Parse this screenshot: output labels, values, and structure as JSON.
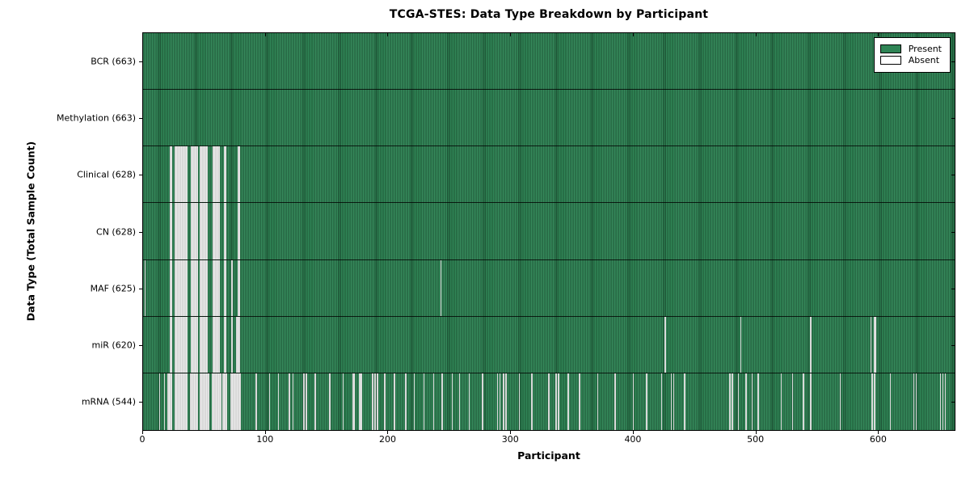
{
  "figure": {
    "title": "TCGA-STES: Data Type Breakdown by Participant"
  },
  "chart_data": {
    "type": "heatmap",
    "title": "TCGA-STES: Data Type Breakdown by Participant",
    "xlabel": "Participant",
    "ylabel": "Data Type (Total Sample Count)",
    "xlim": [
      0,
      663
    ],
    "n_participants": 663,
    "x_ticks": [
      0,
      100,
      200,
      300,
      400,
      500,
      600
    ],
    "grid": false,
    "legend_position": "upper right",
    "legend": {
      "entries": [
        {
          "label": "Present",
          "color": "#2f8455"
        },
        {
          "label": "Absent",
          "color": "#ffffff"
        }
      ]
    },
    "colors": {
      "present": "#2f8455",
      "absent": "#e8e8e8",
      "bar_edge": "#000000"
    },
    "rows": [
      {
        "label": "BCR (663)",
        "name": "BCR",
        "total_present": 663,
        "absent": []
      },
      {
        "label": "Methylation (663)",
        "name": "Methylation",
        "total_present": 663,
        "absent": []
      },
      {
        "label": "Clinical (628)",
        "name": "Clinical",
        "total_present": 628,
        "absent": [
          22,
          23,
          26,
          27,
          28,
          29,
          30,
          31,
          32,
          33,
          34,
          35,
          39,
          40,
          41,
          42,
          43,
          44,
          46,
          47,
          48,
          49,
          50,
          51,
          52,
          57,
          58,
          59,
          60,
          61,
          62,
          66,
          67,
          77,
          78
        ]
      },
      {
        "label": "CN (628)",
        "name": "CN",
        "total_present": 628,
        "absent": [
          22,
          23,
          26,
          27,
          28,
          29,
          30,
          31,
          32,
          33,
          34,
          35,
          39,
          40,
          41,
          42,
          43,
          44,
          46,
          47,
          48,
          49,
          50,
          51,
          52,
          57,
          58,
          59,
          60,
          61,
          62,
          66,
          67,
          77,
          78
        ]
      },
      {
        "label": "MAF (625)",
        "name": "MAF",
        "total_present": 625,
        "absent": [
          1,
          22,
          23,
          26,
          27,
          28,
          29,
          30,
          31,
          32,
          33,
          34,
          35,
          39,
          40,
          41,
          42,
          43,
          44,
          46,
          47,
          48,
          49,
          50,
          51,
          52,
          57,
          58,
          59,
          60,
          61,
          62,
          66,
          67,
          72,
          77,
          78,
          243
        ]
      },
      {
        "label": "miR (620)",
        "name": "miR",
        "total_present": 620,
        "absent": [
          22,
          23,
          26,
          27,
          28,
          29,
          30,
          31,
          32,
          33,
          34,
          35,
          39,
          40,
          41,
          42,
          43,
          44,
          46,
          47,
          48,
          49,
          50,
          51,
          52,
          57,
          58,
          59,
          60,
          61,
          62,
          66,
          67,
          72,
          76,
          77,
          78,
          426,
          488,
          545,
          594,
          597,
          598
        ]
      },
      {
        "label": "mRNA (544)",
        "name": "mRNA",
        "total_present": 544,
        "absent": [
          13,
          17,
          20,
          21,
          22,
          23,
          26,
          27,
          28,
          29,
          30,
          31,
          32,
          33,
          34,
          35,
          38,
          39,
          40,
          41,
          42,
          43,
          44,
          46,
          47,
          48,
          49,
          50,
          51,
          52,
          53,
          56,
          57,
          58,
          59,
          60,
          61,
          62,
          63,
          65,
          66,
          67,
          68,
          71,
          72,
          73,
          74,
          75,
          76,
          77,
          78,
          79,
          92,
          103,
          110,
          119,
          122,
          131,
          133,
          140,
          152,
          163,
          171,
          172,
          176,
          177,
          178,
          187,
          189,
          191,
          197,
          205,
          214,
          221,
          229,
          237,
          244,
          252,
          258,
          266,
          277,
          289,
          291,
          294,
          296,
          307,
          317,
          331,
          337,
          339,
          347,
          356,
          371,
          385,
          400,
          411,
          423,
          431,
          433,
          442,
          479,
          481,
          486,
          492,
          497,
          502,
          521,
          530,
          539,
          545,
          569,
          595,
          597,
          610,
          629,
          631,
          651,
          653,
          655
        ]
      }
    ]
  }
}
